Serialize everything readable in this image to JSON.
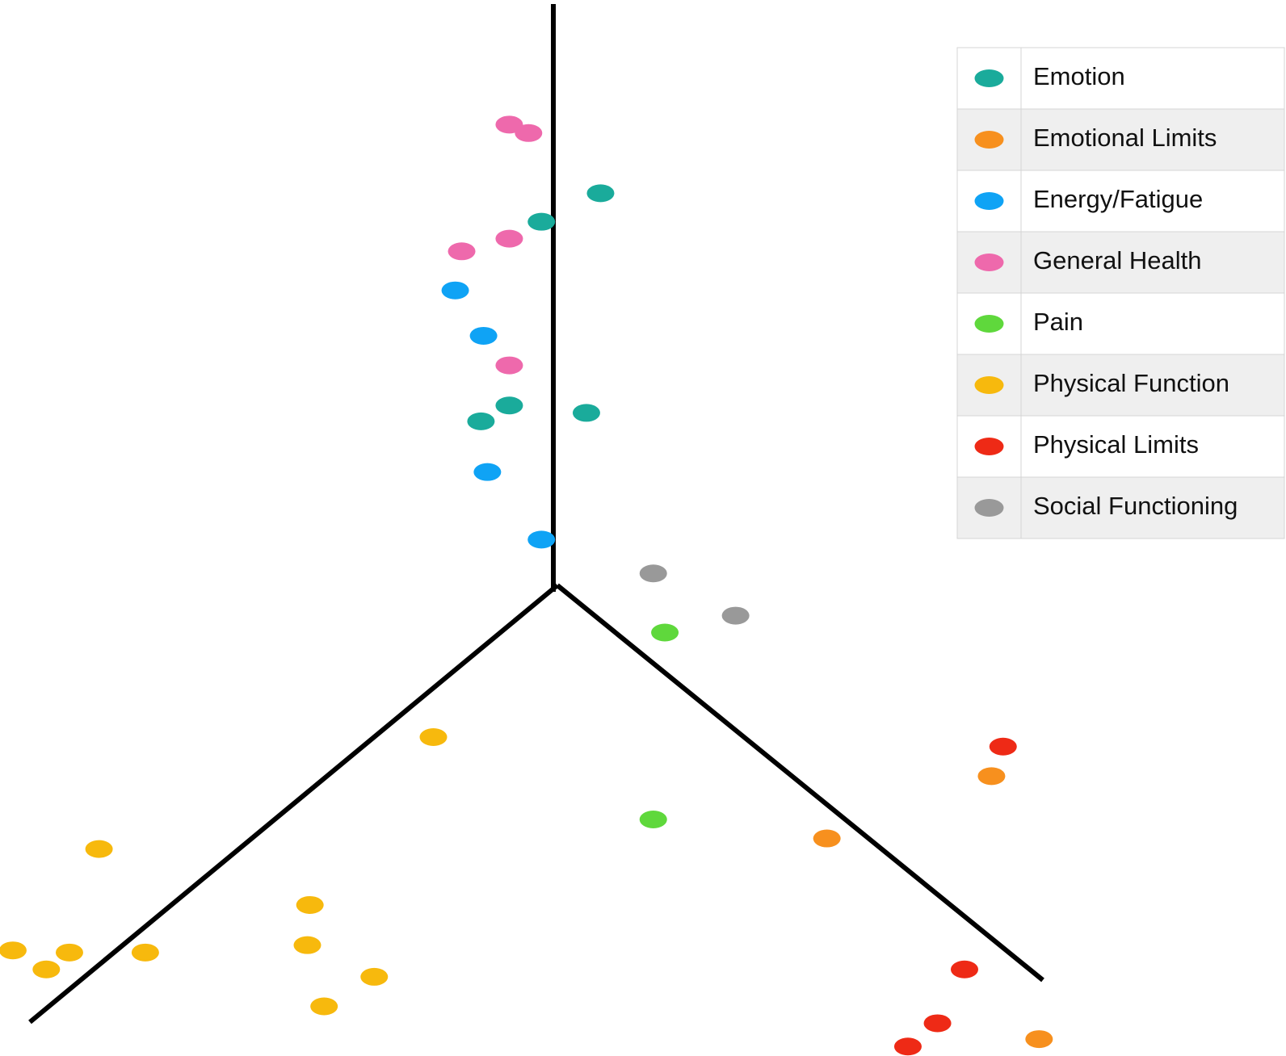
{
  "chart_data": {
    "type": "scatter",
    "xlim": [
      0,
      100
    ],
    "ylim": [
      0,
      100
    ],
    "series": [
      {
        "name": "Emotion",
        "color": "#1aab9b",
        "x": [
          46.7,
          42.1,
          39.6,
          37.4,
          45.6
        ],
        "y": [
          81.7,
          79.0,
          61.6,
          60.1,
          60.9
        ]
      },
      {
        "name": "Emotional Limits",
        "color": "#f7901e",
        "x": [
          77.1,
          64.3,
          80.8
        ],
        "y": [
          26.5,
          20.6,
          1.6
        ]
      },
      {
        "name": "Energy/Fatigue",
        "color": "#0fa3f5",
        "x": [
          35.4,
          37.6,
          37.9,
          42.1
        ],
        "y": [
          72.5,
          68.2,
          55.3,
          48.9
        ]
      },
      {
        "name": "General Health",
        "color": "#ee69ac",
        "x": [
          39.6,
          41.1,
          39.6,
          35.9,
          39.6
        ],
        "y": [
          88.2,
          87.4,
          77.4,
          76.2,
          65.4
        ]
      },
      {
        "name": "Pain",
        "color": "#5fd83c",
        "x": [
          51.7,
          50.8
        ],
        "y": [
          40.1,
          22.4
        ]
      },
      {
        "name": "Physical Function",
        "color": "#f7b90d",
        "x": [
          33.7,
          7.7,
          24.1,
          23.9,
          1.0,
          5.4,
          3.6,
          11.3,
          29.1,
          25.2
        ],
        "y": [
          30.2,
          19.6,
          14.3,
          10.5,
          10.0,
          9.8,
          8.2,
          9.8,
          7.5,
          4.7
        ]
      },
      {
        "name": "Physical Limits",
        "color": "#ee2a16",
        "x": [
          78.0,
          75.0,
          72.9,
          70.6
        ],
        "y": [
          29.3,
          8.2,
          3.1,
          0.9
        ]
      },
      {
        "name": "Social Functioning",
        "color": "#999999",
        "x": [
          50.8,
          57.2
        ],
        "y": [
          45.7,
          41.7
        ]
      }
    ]
  }
}
